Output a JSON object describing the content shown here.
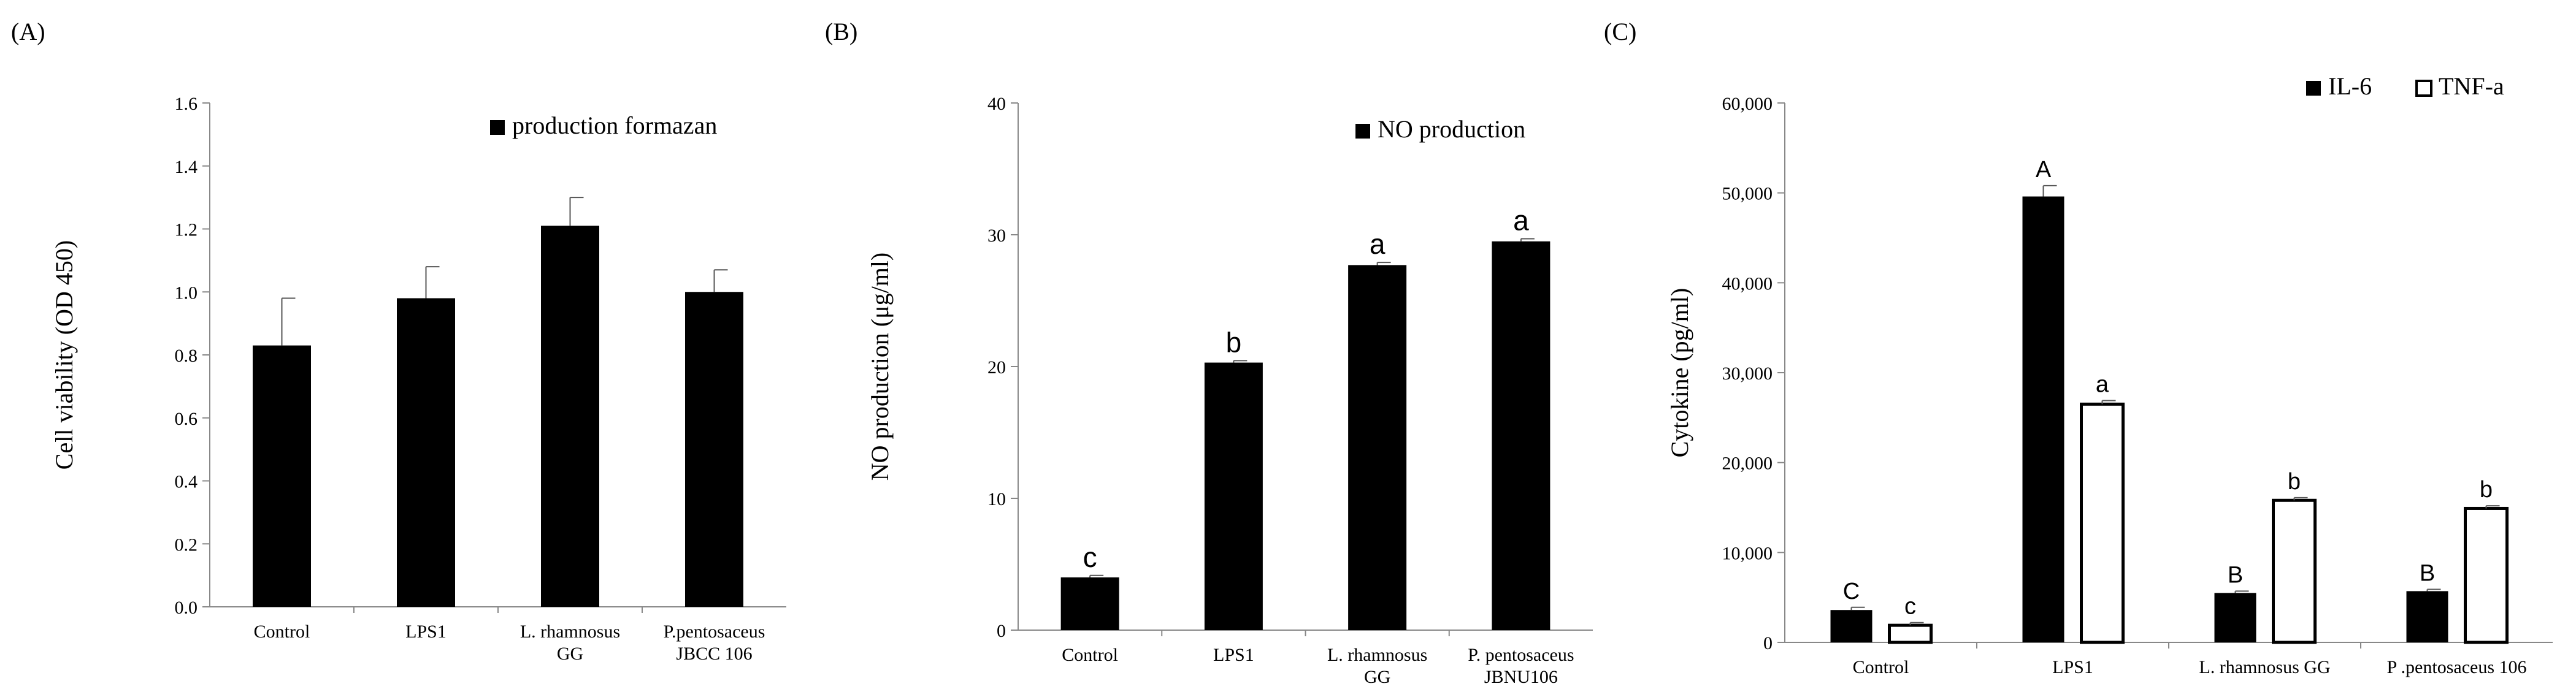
{
  "chart_data": [
    {
      "type": "bar",
      "panel_label": "(A)",
      "ylabel": "Cell viability (OD 450)",
      "ylim": [
        0,
        1.6
      ],
      "yticks": [
        "0.0",
        "0.2",
        "0.4",
        "0.6",
        "0.8",
        "1.0",
        "1.2",
        "1.4",
        "1.6"
      ],
      "categories": [
        [
          "Control"
        ],
        [
          "LPS1"
        ],
        [
          "L. rhamnosus",
          "GG"
        ],
        [
          "P.pentosaceus",
          "JBCC 106"
        ]
      ],
      "series": [
        {
          "name": "production formazan",
          "fill": "#000000",
          "values": [
            0.83,
            0.98,
            1.21,
            1.0
          ],
          "errors": [
            0.15,
            0.1,
            0.09,
            0.07
          ],
          "labels": []
        }
      ],
      "legend_position": "top-right"
    },
    {
      "type": "bar",
      "panel_label": "(B)",
      "ylabel": "NO production (μg/ml)",
      "ylim": [
        0,
        40
      ],
      "yticks": [
        "0",
        "10",
        "20",
        "30",
        "40"
      ],
      "categories": [
        [
          "Control"
        ],
        [
          "LPS1"
        ],
        [
          "L. rhamnosus",
          "GG"
        ],
        [
          "P. pentosaceus",
          "JBNU106"
        ]
      ],
      "series": [
        {
          "name": "NO production",
          "fill": "#000000",
          "values": [
            4.0,
            20.3,
            27.7,
            29.5
          ],
          "errors": [
            0.15,
            0.15,
            0.2,
            0.2
          ],
          "labels": [
            "c",
            "b",
            "a",
            "a"
          ]
        }
      ],
      "legend_position": "top-right"
    },
    {
      "type": "bar",
      "panel_label": "(C)",
      "ylabel": "Cytokine (pg/ml)",
      "ylim": [
        0,
        60000
      ],
      "yticks": [
        "0",
        "10,000",
        "20,000",
        "30,000",
        "40,000",
        "50,000",
        "60,000"
      ],
      "categories": [
        [
          "Control"
        ],
        [
          "LPS1"
        ],
        [
          "L. rhamnosus GG"
        ],
        [
          "P .pentosaceus 106"
        ]
      ],
      "series": [
        {
          "name": "IL-6",
          "fill": "#000000",
          "values": [
            3600,
            49600,
            5500,
            5700
          ],
          "errors": [
            300,
            1200,
            200,
            200
          ],
          "labels": [
            "C",
            "A",
            "B",
            "B"
          ]
        },
        {
          "name": "TNF-a",
          "fill": "#ffffff",
          "values": [
            1900,
            26500,
            15800,
            14900
          ],
          "errors": [
            300,
            400,
            300,
            300
          ],
          "labels": [
            "c",
            "a",
            "b",
            "b"
          ]
        }
      ],
      "legend_position": "top-right"
    }
  ]
}
